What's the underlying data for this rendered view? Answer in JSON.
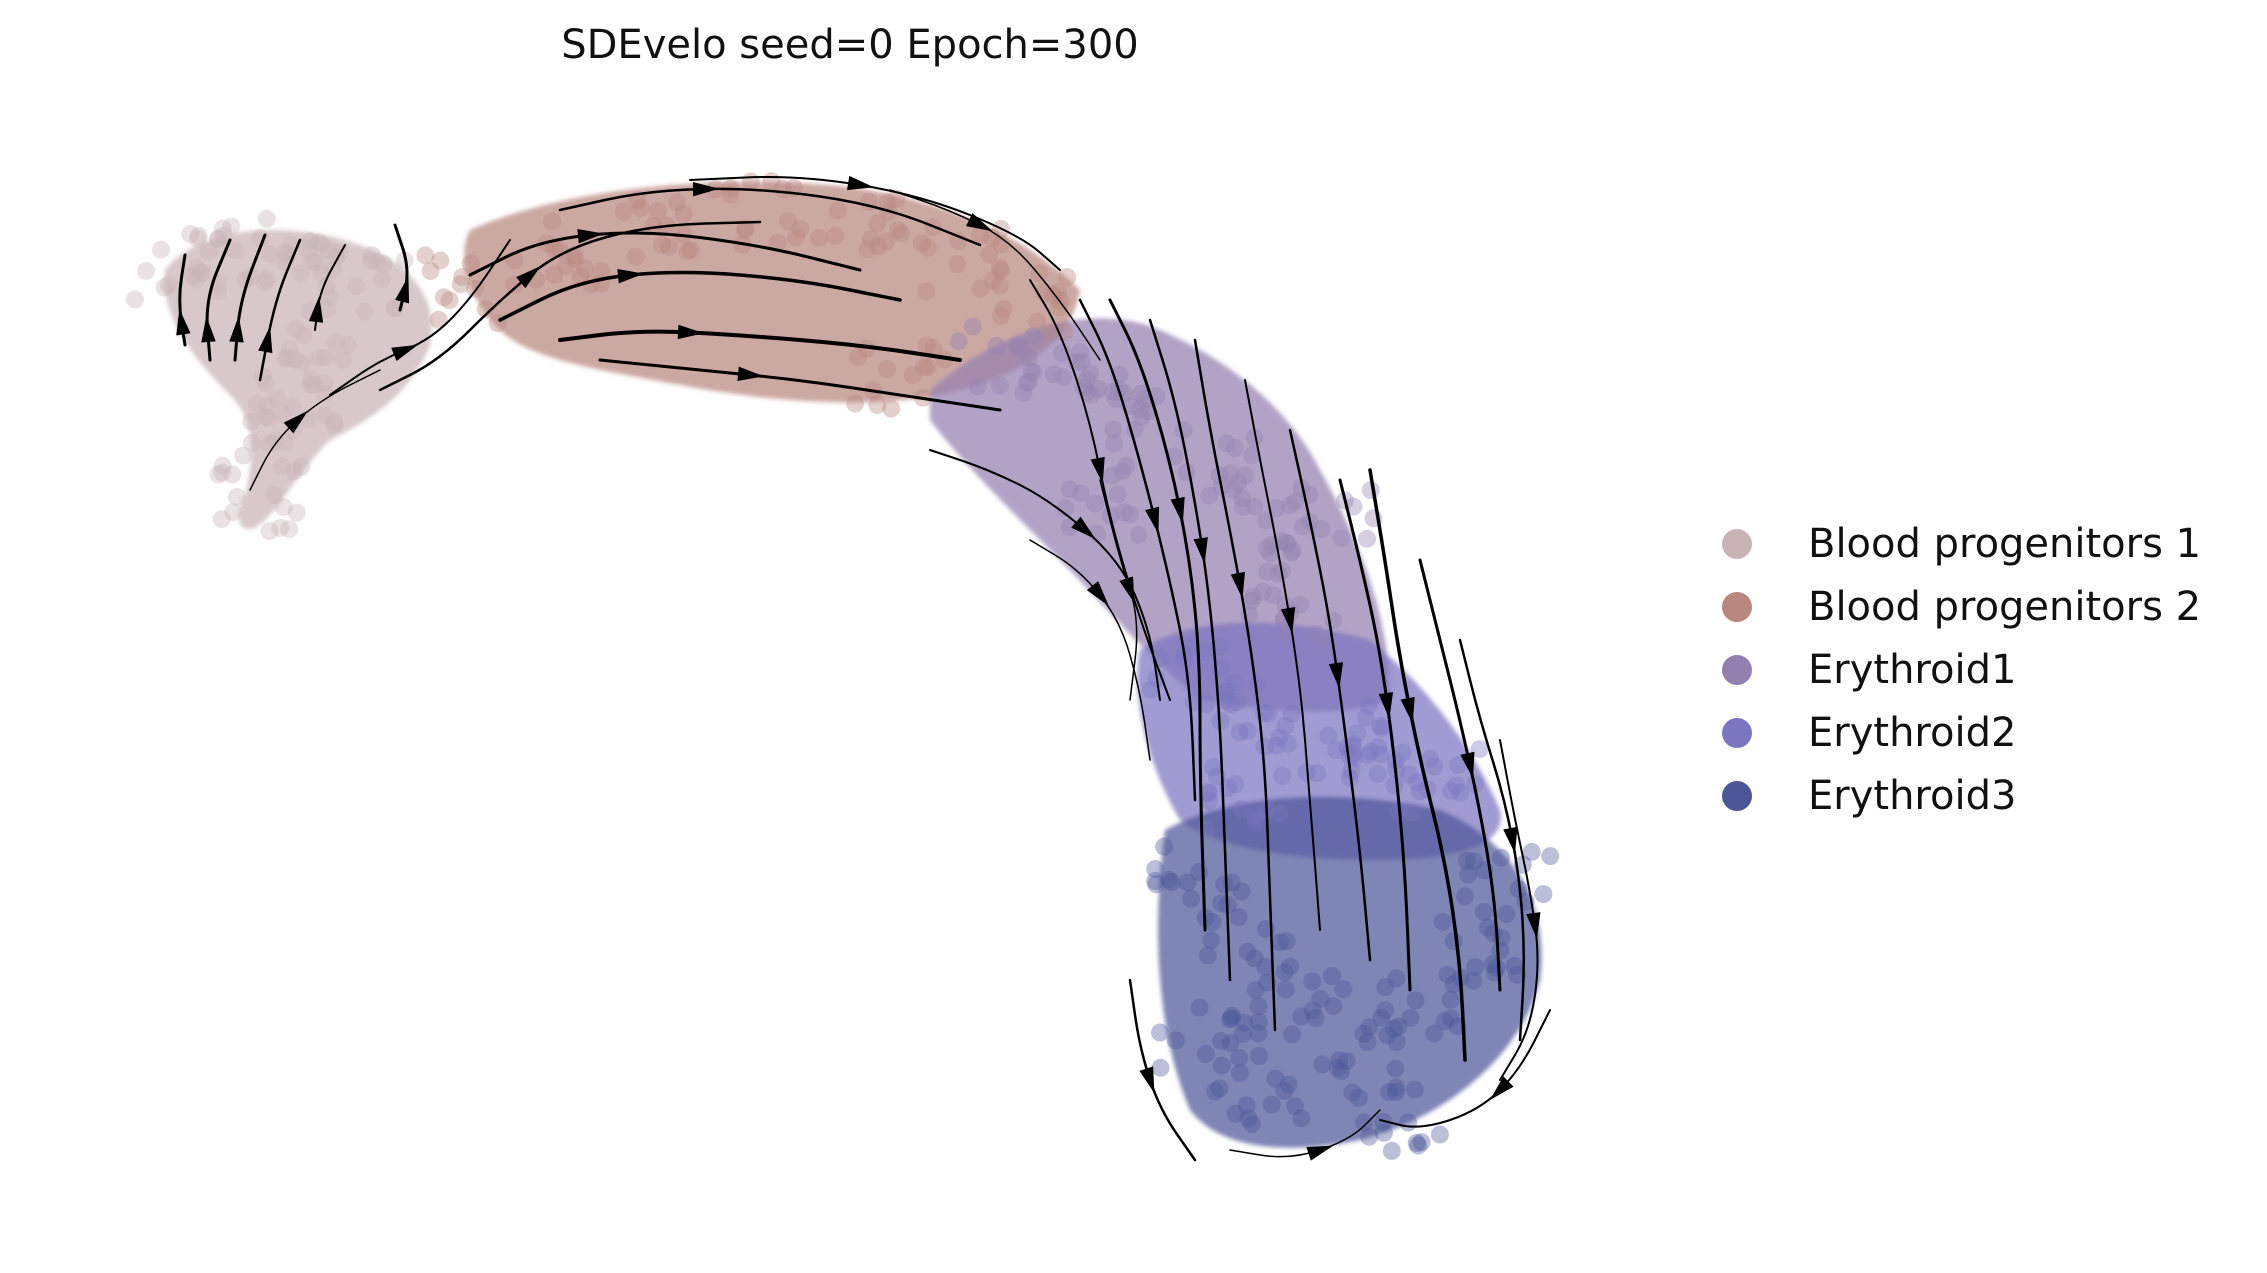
{
  "chart_data": {
    "type": "scatter",
    "subtype": "velocity-stream-embedding",
    "title": "SDEvelo seed=0 Epoch=300",
    "xlabel": "",
    "ylabel": "",
    "axes_visible": false,
    "grid": false,
    "legend_placement": "right",
    "series": [
      {
        "name": "Blood progenitors 1",
        "color": "#c9b3b7"
      },
      {
        "name": "Blood progenitors 2",
        "color": "#b8877f"
      },
      {
        "name": "Erythroid1",
        "color": "#9480b0"
      },
      {
        "name": "Erythroid2",
        "color": "#7c75c0"
      },
      {
        "name": "Erythroid3",
        "color": "#4d5699"
      }
    ]
  }
}
